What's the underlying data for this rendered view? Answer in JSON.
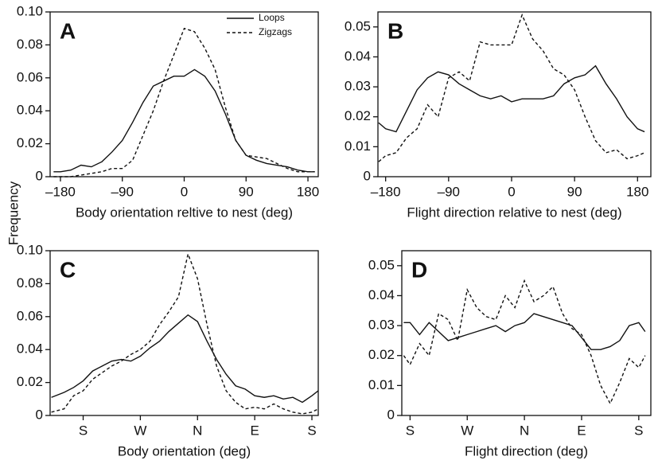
{
  "ylabel": "Frequency",
  "chart_data": [
    {
      "type": "line",
      "panel_label": "A",
      "xlabel": "Body orientation reltive to nest (deg)",
      "xlim": [
        -195,
        195
      ],
      "ylim": [
        0,
        0.1
      ],
      "xticks": [
        {
          "value": -180,
          "label": "–180"
        },
        {
          "value": -90,
          "label": "–90"
        },
        0,
        90,
        180
      ],
      "yticks": [
        0,
        0.02,
        0.04,
        0.06,
        0.08,
        {
          "value": 0.1,
          "label": "0.10"
        }
      ],
      "legend": "upper right",
      "x": [
        -190,
        -180,
        -165,
        -150,
        -135,
        -120,
        -105,
        -90,
        -75,
        -60,
        -45,
        -30,
        -15,
        0,
        15,
        30,
        45,
        60,
        75,
        90,
        105,
        120,
        135,
        150,
        165,
        180,
        190
      ],
      "series": [
        {
          "name": "Loops",
          "color": "#111111",
          "dash": "solid",
          "values": [
            0.003,
            0.003,
            0.004,
            0.007,
            0.006,
            0.009,
            0.015,
            0.022,
            0.033,
            0.045,
            0.055,
            0.058,
            0.061,
            0.061,
            0.065,
            0.061,
            0.052,
            0.038,
            0.022,
            0.013,
            0.01,
            0.008,
            0.007,
            0.006,
            0.004,
            0.003,
            0.003
          ]
        },
        {
          "name": "Zigzags",
          "color": "#111111",
          "dash": "dashed",
          "values": [
            0,
            0,
            0,
            0.001,
            0.002,
            0.003,
            0.005,
            0.005,
            0.01,
            0.025,
            0.04,
            0.058,
            0.074,
            0.09,
            0.088,
            0.078,
            0.065,
            0.042,
            0.022,
            0.013,
            0.012,
            0.011,
            0.008,
            0.005,
            0.003,
            0.003,
            0.003
          ]
        }
      ]
    },
    {
      "type": "line",
      "panel_label": "B",
      "xlabel": "Flight direction relative to nest (deg)",
      "xlim": [
        -191,
        199
      ],
      "ylim": [
        0,
        0.055
      ],
      "xticks": [
        {
          "value": -180,
          "label": "–180"
        },
        {
          "value": -90,
          "label": "–90"
        },
        0,
        90,
        180
      ],
      "yticks": [
        0,
        0.01,
        0.02,
        0.03,
        0.04,
        0.05
      ],
      "x": [
        -190,
        -180,
        -165,
        -150,
        -135,
        -120,
        -105,
        -90,
        -75,
        -60,
        -45,
        -30,
        -15,
        0,
        15,
        30,
        45,
        60,
        75,
        90,
        105,
        120,
        135,
        150,
        165,
        180,
        190
      ],
      "series": [
        {
          "color": "#111111",
          "dash": "solid",
          "values": [
            0.018,
            0.016,
            0.015,
            0.022,
            0.029,
            0.033,
            0.035,
            0.034,
            0.031,
            0.029,
            0.027,
            0.026,
            0.027,
            0.025,
            0.026,
            0.026,
            0.026,
            0.027,
            0.031,
            0.033,
            0.034,
            0.037,
            0.031,
            0.026,
            0.02,
            0.016,
            0.015
          ]
        },
        {
          "color": "#111111",
          "dash": "dashed",
          "values": [
            0.005,
            0.007,
            0.008,
            0.013,
            0.016,
            0.024,
            0.02,
            0.033,
            0.035,
            0.032,
            0.045,
            0.044,
            0.044,
            0.044,
            0.054,
            0.046,
            0.042,
            0.036,
            0.034,
            0.029,
            0.02,
            0.012,
            0.008,
            0.009,
            0.006,
            0.007,
            0.008
          ]
        }
      ]
    },
    {
      "type": "line",
      "panel_label": "C",
      "xlabel": "Body orientation (deg)",
      "xlim": [
        -232,
        190
      ],
      "ylim": [
        0,
        0.1
      ],
      "xticks": [
        {
          "value": -180,
          "label": "S"
        },
        {
          "value": -90,
          "label": "W"
        },
        {
          "value": 0,
          "label": "N"
        },
        {
          "value": 90,
          "label": "E"
        },
        {
          "value": 180,
          "label": "S"
        }
      ],
      "yticks": [
        0,
        0.02,
        0.04,
        0.06,
        0.08,
        {
          "value": 0.1,
          "label": "0.10"
        }
      ],
      "x": [
        -230,
        -210,
        -195,
        -180,
        -165,
        -150,
        -135,
        -120,
        -105,
        -90,
        -75,
        -60,
        -45,
        -30,
        -15,
        0,
        15,
        30,
        45,
        60,
        75,
        90,
        105,
        120,
        135,
        150,
        165,
        180,
        190
      ],
      "series": [
        {
          "color": "#111111",
          "dash": "solid",
          "values": [
            0.011,
            0.014,
            0.017,
            0.021,
            0.027,
            0.03,
            0.033,
            0.034,
            0.033,
            0.036,
            0.041,
            0.045,
            0.051,
            0.056,
            0.061,
            0.057,
            0.045,
            0.034,
            0.025,
            0.018,
            0.016,
            0.012,
            0.011,
            0.012,
            0.01,
            0.011,
            0.008,
            0.012,
            0.015
          ]
        },
        {
          "color": "#111111",
          "dash": "dashed",
          "values": [
            0.002,
            0.004,
            0.012,
            0.015,
            0.022,
            0.026,
            0.03,
            0.033,
            0.037,
            0.04,
            0.045,
            0.055,
            0.063,
            0.072,
            0.098,
            0.083,
            0.055,
            0.03,
            0.015,
            0.008,
            0.004,
            0.005,
            0.004,
            0.007,
            0.004,
            0.002,
            0.001,
            0.002,
            0.004
          ]
        }
      ]
    },
    {
      "type": "line",
      "panel_label": "D",
      "xlabel": "Flight direction (deg)",
      "xlim": [
        -193,
        199
      ],
      "ylim": [
        0,
        0.055
      ],
      "xticks": [
        {
          "value": -180,
          "label": "S"
        },
        {
          "value": -90,
          "label": "W"
        },
        {
          "value": 0,
          "label": "N"
        },
        {
          "value": 90,
          "label": "E"
        },
        {
          "value": 180,
          "label": "S"
        }
      ],
      "yticks": [
        0,
        0.01,
        0.02,
        0.03,
        0.04,
        0.05
      ],
      "x": [
        -190,
        -180,
        -165,
        -150,
        -135,
        -120,
        -105,
        -90,
        -75,
        -60,
        -45,
        -30,
        -15,
        0,
        15,
        30,
        45,
        60,
        75,
        90,
        105,
        120,
        135,
        150,
        165,
        180,
        190
      ],
      "series": [
        {
          "color": "#111111",
          "dash": "solid",
          "values": [
            0.031,
            0.031,
            0.027,
            0.031,
            0.028,
            0.025,
            0.026,
            0.027,
            0.028,
            0.029,
            0.03,
            0.028,
            0.03,
            0.031,
            0.034,
            0.033,
            0.032,
            0.031,
            0.03,
            0.026,
            0.022,
            0.022,
            0.023,
            0.025,
            0.03,
            0.031,
            0.028
          ]
        },
        {
          "color": "#111111",
          "dash": "dashed",
          "values": [
            0.02,
            0.017,
            0.024,
            0.02,
            0.034,
            0.032,
            0.025,
            0.042,
            0.036,
            0.033,
            0.032,
            0.04,
            0.036,
            0.045,
            0.038,
            0.04,
            0.043,
            0.034,
            0.029,
            0.027,
            0.02,
            0.01,
            0.004,
            0.011,
            0.019,
            0.016,
            0.02
          ]
        }
      ]
    }
  ]
}
